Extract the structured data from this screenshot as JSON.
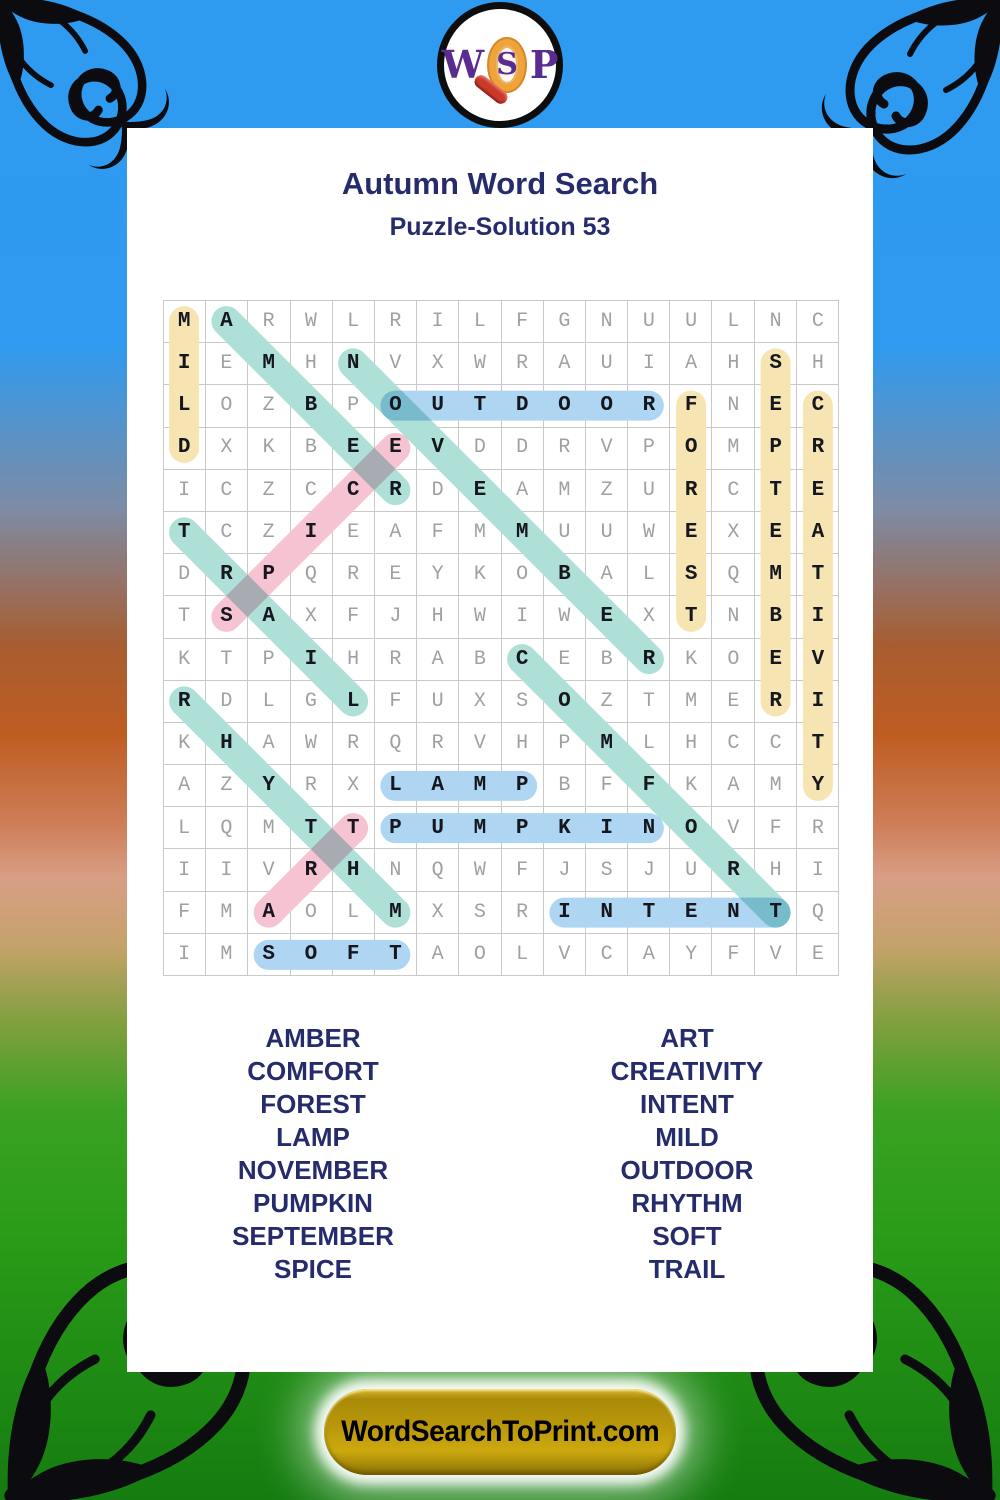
{
  "page": {
    "title": "Autumn Word Search",
    "subtitle": "Puzzle-Solution 53",
    "site_button_label": "WordSearchToPrint.com"
  },
  "logo": {
    "letter_w": "W",
    "letter_s": "S",
    "letter_p": "P"
  },
  "highlight_colors": {
    "yellow": "#F6E5B2",
    "teal": "#AEE0D7",
    "pink": "#F6C3D2",
    "blue": "#AED5F2"
  },
  "grid": {
    "size": 16,
    "rows": [
      "MARWLRILFGNUULNC",
      "IEMHNVXWRAUIAHSH",
      "LOZBPOUTDOORFNEC",
      "DXKBEEVDDRVPOMPR",
      "ICZCCRDEAMZURCTE",
      "TCZIEAFMMUUWEXEA",
      "DRPQREYKOBALSQMT",
      "TSAXFJHWIWEXTNBI",
      "KTPIHRABCEBRKOEV",
      "RDLGLFUXSOZTMERI",
      "KHAWRQRVHPMLHCCT",
      "AZYRXLAMPBFFKAMY",
      "LQMTTPUMPKINOVFR",
      "IIVRHNQWFJSJURHI",
      "FMAOLMXSRINTENTQ",
      "IMSOFTAOLVCAYFVE"
    ]
  },
  "solutions": [
    {
      "word": "MILD",
      "row": 1,
      "col": 1,
      "dr": 1,
      "dc": 0,
      "color": "yellow"
    },
    {
      "word": "SEPTEMBER",
      "row": 2,
      "col": 15,
      "dr": 1,
      "dc": 0,
      "color": "yellow"
    },
    {
      "word": "FOREST",
      "row": 3,
      "col": 13,
      "dr": 1,
      "dc": 0,
      "color": "yellow"
    },
    {
      "word": "CREATIVITY",
      "row": 3,
      "col": 16,
      "dr": 1,
      "dc": 0,
      "color": "yellow"
    },
    {
      "word": "AMBER",
      "row": 1,
      "col": 2,
      "dr": 1,
      "dc": 1,
      "color": "teal"
    },
    {
      "word": "NOVEMBER",
      "row": 2,
      "col": 5,
      "dr": 1,
      "dc": 1,
      "color": "teal"
    },
    {
      "word": "TRAIL",
      "row": 6,
      "col": 1,
      "dr": 1,
      "dc": 1,
      "color": "teal"
    },
    {
      "word": "COMFORT",
      "row": 9,
      "col": 9,
      "dr": 1,
      "dc": 1,
      "color": "teal"
    },
    {
      "word": "RHYTHM",
      "row": 10,
      "col": 1,
      "dr": 1,
      "dc": 1,
      "color": "teal"
    },
    {
      "word": "SPICE",
      "row": 8,
      "col": 2,
      "dr": -1,
      "dc": 1,
      "color": "pink"
    },
    {
      "word": "ART",
      "row": 15,
      "col": 3,
      "dr": -1,
      "dc": 1,
      "color": "pink"
    },
    {
      "word": "OUTDOOR",
      "row": 3,
      "col": 6,
      "dr": 0,
      "dc": 1,
      "color": "blue"
    },
    {
      "word": "LAMP",
      "row": 12,
      "col": 6,
      "dr": 0,
      "dc": 1,
      "color": "blue"
    },
    {
      "word": "PUMPKIN",
      "row": 13,
      "col": 6,
      "dr": 0,
      "dc": 1,
      "color": "blue"
    },
    {
      "word": "INTENT",
      "row": 15,
      "col": 10,
      "dr": 0,
      "dc": 1,
      "color": "blue"
    },
    {
      "word": "SOFT",
      "row": 16,
      "col": 3,
      "dr": 0,
      "dc": 1,
      "color": "blue"
    }
  ],
  "word_list": {
    "left": [
      "AMBER",
      "COMFORT",
      "FOREST",
      "LAMP",
      "NOVEMBER",
      "PUMPKIN",
      "SEPTEMBER",
      "SPICE"
    ],
    "right": [
      "ART",
      "CREATIVITY",
      "INTENT",
      "MILD",
      "OUTDOOR",
      "RHYTHM",
      "SOFT",
      "TRAIL"
    ]
  }
}
